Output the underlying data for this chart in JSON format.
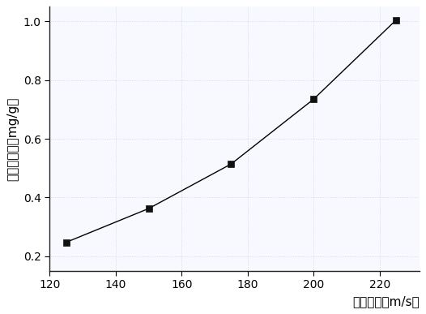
{
  "x": [
    125,
    150,
    175,
    200,
    225
  ],
  "y": [
    0.247,
    0.362,
    0.514,
    0.735,
    1.005
  ],
  "xlim": [
    120,
    232
  ],
  "ylim": [
    0.15,
    1.05
  ],
  "xticks": [
    120,
    140,
    160,
    180,
    200,
    220
  ],
  "yticks": [
    0.2,
    0.4,
    0.6,
    0.8,
    1.0
  ],
  "xlabel": "冲击速度（m/s）",
  "ylabel": "冲击磨损率（mg/g）",
  "line_color": "#000000",
  "marker": "s",
  "marker_color": "#111111",
  "marker_size": 6,
  "line_width": 1.0,
  "grid": true,
  "grid_color": "#c8d8e8",
  "background_color": "#f8f8ff",
  "figure_background": "#ffffff",
  "xlabel_fontsize": 11,
  "ylabel_fontsize": 11,
  "tick_fontsize": 10
}
